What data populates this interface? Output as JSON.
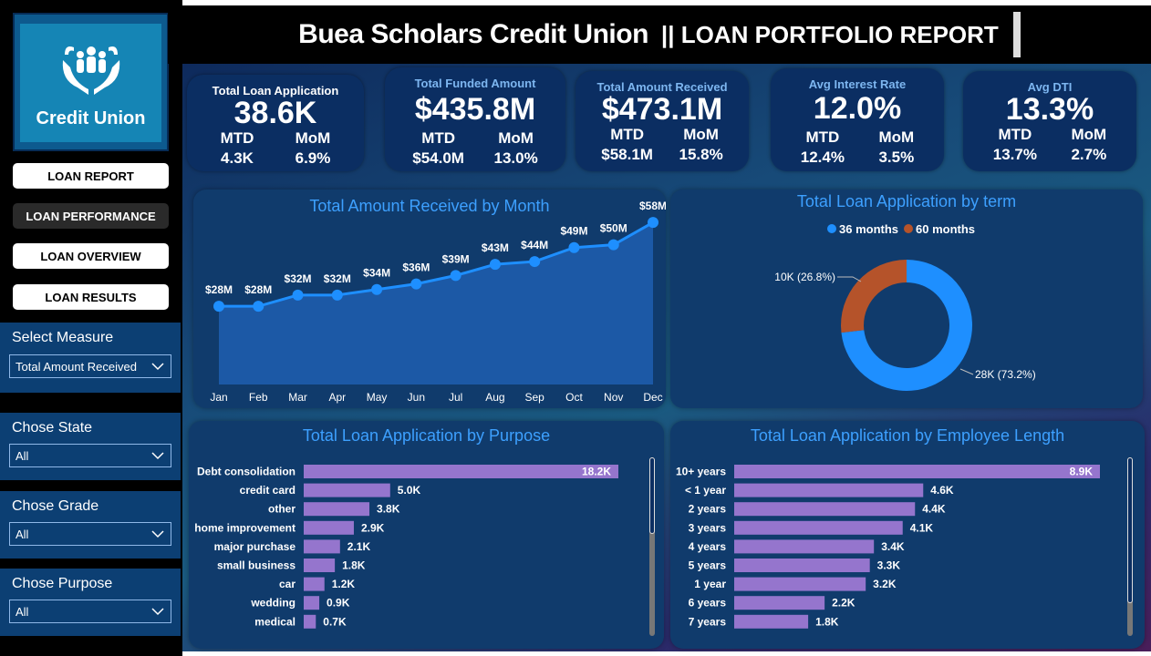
{
  "header": {
    "app_title": "Buea Scholars Credit Union",
    "report_title": "|| LOAN PORTFOLIO REPORT"
  },
  "logo": {
    "text": "Credit Union"
  },
  "nav": [
    {
      "label": "LOAN REPORT",
      "active": true
    },
    {
      "label": "LOAN PERFORMANCE",
      "active": false
    },
    {
      "label": "LOAN OVERVIEW",
      "active": false
    },
    {
      "label": "LOAN RESULTS",
      "active": false
    }
  ],
  "filters": {
    "measure": {
      "label": "Select Measure",
      "value": "Total Amount Received"
    },
    "state": {
      "label": "Chose State",
      "value": "All"
    },
    "grade": {
      "label": "Chose Grade",
      "value": "All"
    },
    "purpose": {
      "label": "Chose Purpose",
      "value": "All"
    }
  },
  "kpis": [
    {
      "title": "Total Loan Application",
      "value": "38.6K",
      "mtd_label": "MTD",
      "mtd": "4.3K",
      "mom_label": "MoM",
      "mom": "6.9%"
    },
    {
      "title": "Total Funded Amount",
      "value": "$435.8M",
      "mtd_label": "MTD",
      "mtd": "$54.0M",
      "mom_label": "MoM",
      "mom": "13.0%"
    },
    {
      "title": "Total Amount Received",
      "value": "$473.1M",
      "mtd_label": "MTD",
      "mtd": "$58.1M",
      "mom_label": "MoM",
      "mom": "15.8%"
    },
    {
      "title": "Avg Interest Rate",
      "value": "12.0%",
      "mtd_label": "MTD",
      "mtd": "12.4%",
      "mom_label": "MoM",
      "mom": "3.5%"
    },
    {
      "title": "Avg DTI",
      "value": "13.3%",
      "mtd_label": "MTD",
      "mtd": "13.7%",
      "mom_label": "MoM",
      "mom": "2.7%"
    }
  ],
  "colors": {
    "line": "#1e8fff",
    "pie_36": "#1e8fff",
    "pie_60": "#b5532a",
    "bar": "#9575cd",
    "accent_title": "#3da0ff"
  },
  "chart_data": [
    {
      "type": "area",
      "title": "Total Amount Received by Month",
      "categories": [
        "Jan",
        "Feb",
        "Mar",
        "Apr",
        "May",
        "Jun",
        "Jul",
        "Aug",
        "Sep",
        "Oct",
        "Nov",
        "Dec"
      ],
      "values": [
        28,
        28,
        32,
        32,
        34,
        36,
        39,
        43,
        44,
        49,
        50,
        58
      ],
      "data_labels": [
        "$28M",
        "$28M",
        "$32M",
        "$32M",
        "$34M",
        "$36M",
        "$39M",
        "$43M",
        "$44M",
        "$49M",
        "$50M",
        "$58M"
      ],
      "ylim": [
        0,
        60
      ]
    },
    {
      "type": "pie",
      "title": "Total Loan Application by term",
      "legend_position": "top",
      "series": [
        {
          "name": "36 months",
          "value": 73.2,
          "label": "28K (73.2%)"
        },
        {
          "name": "60 months",
          "value": 26.8,
          "label": "10K (26.8%)"
        }
      ]
    },
    {
      "type": "bar",
      "title": "Total Loan Application by Purpose",
      "categories": [
        "Debt consolidation",
        "credit card",
        "other",
        "home improvement",
        "major purchase",
        "small business",
        "car",
        "wedding",
        "medical"
      ],
      "values": [
        18.2,
        5.0,
        3.8,
        2.9,
        2.1,
        1.8,
        1.2,
        0.9,
        0.7
      ],
      "data_labels": [
        "18.2K",
        "5.0K",
        "3.8K",
        "2.9K",
        "2.1K",
        "1.8K",
        "1.2K",
        "0.9K",
        "0.7K"
      ]
    },
    {
      "type": "bar",
      "title": "Total Loan Application by Employee Length",
      "categories": [
        "10+ years",
        "< 1 year",
        "2 years",
        "3 years",
        "4 years",
        "5 years",
        "1 year",
        "6 years",
        "7 years"
      ],
      "values": [
        8.9,
        4.6,
        4.4,
        4.1,
        3.4,
        3.3,
        3.2,
        2.2,
        1.8
      ],
      "data_labels": [
        "8.9K",
        "4.6K",
        "4.4K",
        "4.1K",
        "3.4K",
        "3.3K",
        "3.2K",
        "2.2K",
        "1.8K"
      ]
    }
  ]
}
